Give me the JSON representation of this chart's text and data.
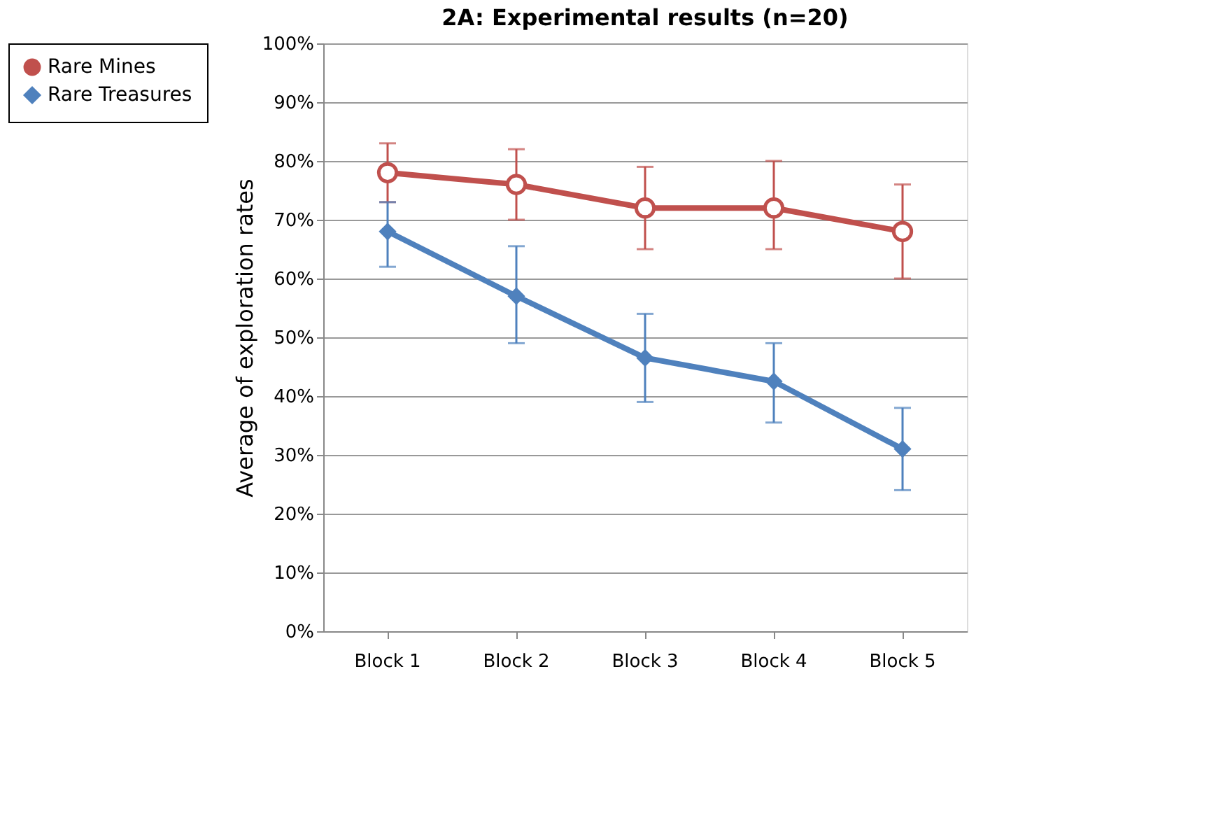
{
  "chart_data": {
    "type": "line",
    "title": "2A: Experimental results (n=20)",
    "ylabel": "Average of exploration rates",
    "categories": [
      "Block 1",
      "Block 2",
      "Block 3",
      "Block 4",
      "Block 5"
    ],
    "series": [
      {
        "name": "Rare Mines",
        "color": "#c0504d",
        "marker": "circle",
        "values": [
          78,
          76,
          72,
          72,
          68
        ],
        "errors": [
          [
            73,
            83
          ],
          [
            70,
            82
          ],
          [
            65,
            79
          ],
          [
            65,
            80
          ],
          [
            60,
            76
          ]
        ]
      },
      {
        "name": "Rare Treasures",
        "color": "#4f81bd",
        "marker": "diamond",
        "values": [
          68,
          57,
          46.5,
          42.5,
          31
        ],
        "errors": [
          [
            62,
            73
          ],
          [
            49,
            65.5
          ],
          [
            39,
            54
          ],
          [
            35.5,
            49
          ],
          [
            24,
            38
          ]
        ]
      }
    ],
    "ylim": [
      0,
      100
    ],
    "yticks": [
      {
        "value": 0,
        "label": "0%"
      },
      {
        "value": 10,
        "label": "10%"
      },
      {
        "value": 20,
        "label": "20%"
      },
      {
        "value": 30,
        "label": "30%"
      },
      {
        "value": 40,
        "label": "40%"
      },
      {
        "value": 50,
        "label": "50%"
      },
      {
        "value": 60,
        "label": "60%"
      },
      {
        "value": 70,
        "label": "70%"
      },
      {
        "value": 80,
        "label": "80%"
      },
      {
        "value": 90,
        "label": "90%"
      },
      {
        "value": 100,
        "label": "100%"
      }
    ],
    "grid": "y",
    "legend": "left",
    "line_style": "solid"
  }
}
